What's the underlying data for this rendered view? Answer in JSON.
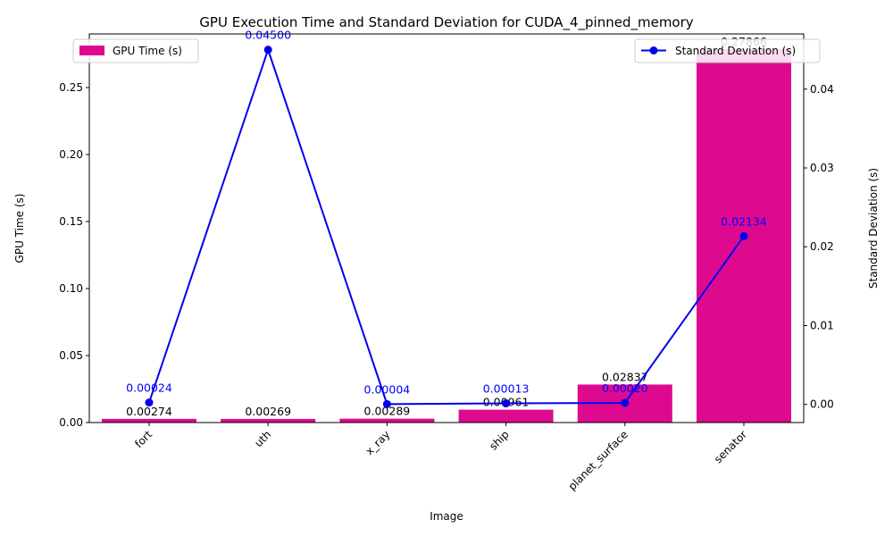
{
  "chart_data": {
    "type": "bar+line",
    "title": "GPU Execution Time and Standard Deviation for CUDA_4_pinned_memory",
    "xlabel": "Image",
    "ylabel_left": "GPU Time (s)",
    "ylabel_right": "Standard Deviation (s)",
    "categories": [
      "fort",
      "uth",
      "x_ray",
      "ship",
      "planet_surface",
      "senator"
    ],
    "ylim_left": [
      0,
      0.29
    ],
    "yticks_left": [
      0.0,
      0.05,
      0.1,
      0.15,
      0.2,
      0.25
    ],
    "ytick_labels_left": [
      "0.00",
      "0.05",
      "0.10",
      "0.15",
      "0.20",
      "0.25"
    ],
    "ylim_right": [
      -0.0023,
      0.047
    ],
    "yticks_right": [
      0.0,
      0.01,
      0.02,
      0.03,
      0.04
    ],
    "ytick_labels_right": [
      "0.00",
      "0.01",
      "0.02",
      "0.03",
      "0.04"
    ],
    "series": [
      {
        "name": "GPU Time (s)",
        "kind": "bar",
        "axis": "left",
        "color": "#dd0a8f",
        "values": [
          0.00274,
          0.00269,
          0.00289,
          0.00961,
          0.02837,
          0.27866
        ],
        "labels": [
          "0.00274",
          "0.00269",
          "0.00289",
          "0.00961",
          "0.02837",
          "0.27866"
        ],
        "label_color": "#000000"
      },
      {
        "name": "Standard Deviation (s)",
        "kind": "line",
        "axis": "right",
        "color": "#0000ee",
        "values": [
          0.00024,
          0.045,
          4e-05,
          0.00013,
          0.0002,
          0.02134
        ],
        "labels": [
          "0.00024",
          "0.04500",
          "0.00004",
          "0.00013",
          "0.00020",
          "0.02134"
        ],
        "label_color": "#0000ff"
      }
    ],
    "legend_left": "upper-left",
    "legend_right": "upper-right",
    "grid": false
  }
}
